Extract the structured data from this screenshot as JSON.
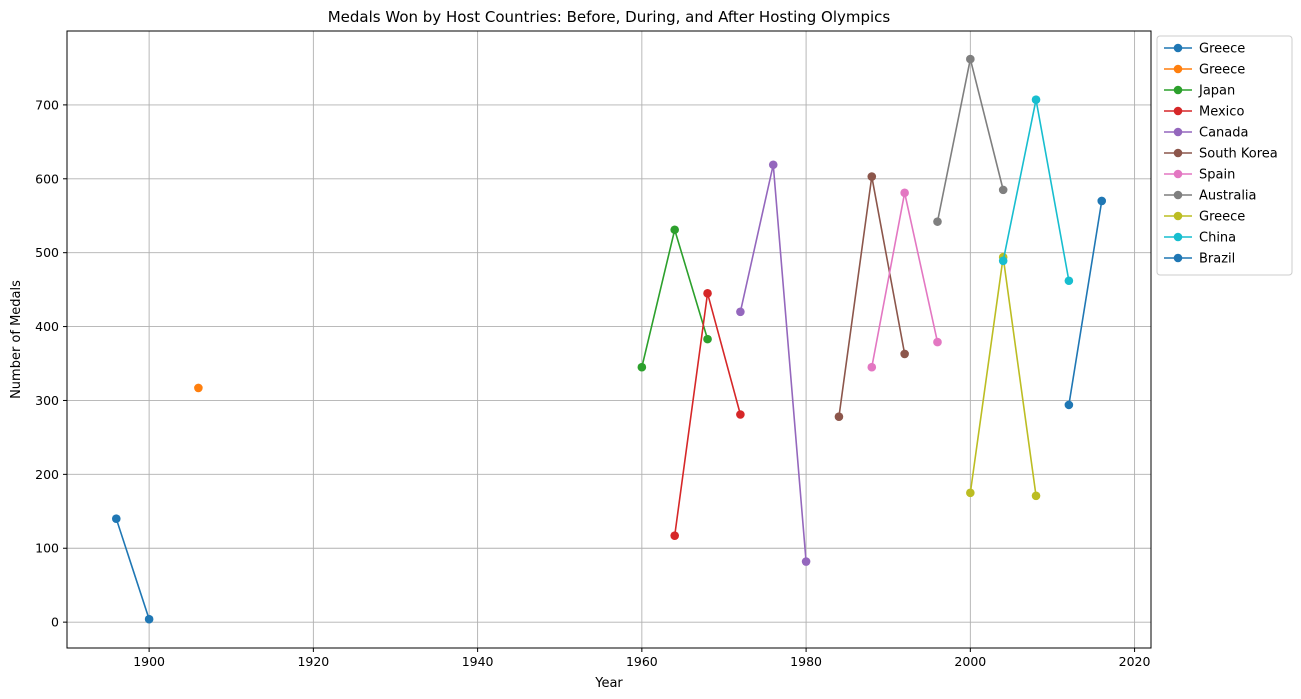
{
  "chart_data": {
    "type": "line",
    "title": "Medals Won by Host Countries: Before, During, and After Hosting Olympics",
    "xlabel": "Year",
    "ylabel": "Number of Medals",
    "xlim": [
      1890,
      2022
    ],
    "ylim": [
      -35,
      800
    ],
    "xticks": [
      1900,
      1920,
      1940,
      1960,
      1980,
      2000,
      2020
    ],
    "yticks": [
      0,
      100,
      200,
      300,
      400,
      500,
      600,
      700
    ],
    "grid": true,
    "legend_position": "outside-top-right",
    "series": [
      {
        "name": "Greece",
        "color": "#1f77b4",
        "points": [
          [
            1896,
            140
          ],
          [
            1900,
            4
          ]
        ]
      },
      {
        "name": "Greece",
        "color": "#ff7f0e",
        "points": [
          [
            1906,
            317
          ]
        ]
      },
      {
        "name": "Japan",
        "color": "#2ca02c",
        "points": [
          [
            1960,
            345
          ],
          [
            1964,
            531
          ],
          [
            1968,
            383
          ]
        ]
      },
      {
        "name": "Mexico",
        "color": "#d62728",
        "points": [
          [
            1964,
            117
          ],
          [
            1968,
            445
          ],
          [
            1972,
            281
          ]
        ]
      },
      {
        "name": "Canada",
        "color": "#9467bd",
        "points": [
          [
            1972,
            420
          ],
          [
            1976,
            619
          ],
          [
            1980,
            82
          ]
        ]
      },
      {
        "name": "South Korea",
        "color": "#8c564b",
        "points": [
          [
            1984,
            278
          ],
          [
            1988,
            603
          ],
          [
            1992,
            363
          ]
        ]
      },
      {
        "name": "Spain",
        "color": "#e377c2",
        "points": [
          [
            1988,
            345
          ],
          [
            1992,
            581
          ],
          [
            1996,
            379
          ]
        ]
      },
      {
        "name": "Australia",
        "color": "#7f7f7f",
        "points": [
          [
            1996,
            542
          ],
          [
            2000,
            762
          ],
          [
            2004,
            585
          ]
        ]
      },
      {
        "name": "Greece",
        "color": "#bcbd22",
        "points": [
          [
            2000,
            175
          ],
          [
            2004,
            494
          ],
          [
            2008,
            171
          ]
        ]
      },
      {
        "name": "China",
        "color": "#17becf",
        "points": [
          [
            2004,
            489
          ],
          [
            2008,
            707
          ],
          [
            2012,
            462
          ]
        ]
      },
      {
        "name": "Brazil",
        "color": "#1f77b4",
        "points": [
          [
            2012,
            294
          ],
          [
            2016,
            570
          ]
        ]
      }
    ]
  }
}
